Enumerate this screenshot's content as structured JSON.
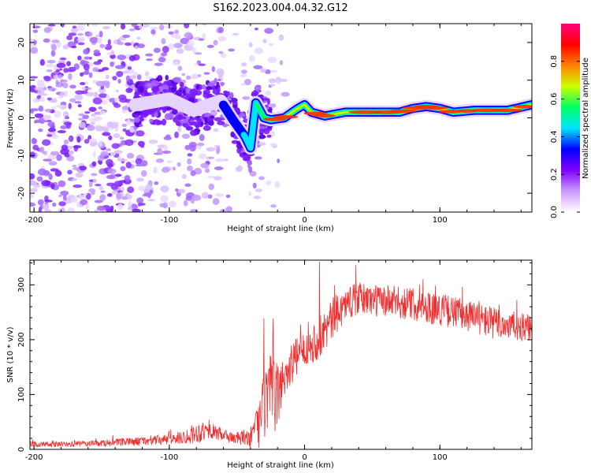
{
  "title": "S162.2023.004.04.32.G12",
  "chart_data": [
    {
      "type": "heatmap",
      "xlabel": "Height of straight line (km)",
      "ylabel": "Frequency (Hz)",
      "xlim": [
        -203,
        168
      ],
      "ylim": [
        -25,
        25
      ],
      "xticks": [
        -200,
        -100,
        0,
        100
      ],
      "yticks": [
        -20,
        -10,
        0,
        10,
        20
      ],
      "colorbar": {
        "label": "Normalized spectral amplitude",
        "range": [
          0,
          1
        ],
        "ticks": [
          0.0,
          0.2,
          0.4,
          0.6,
          0.8
        ],
        "colors": [
          "#ffffff",
          "#cc99ff",
          "#8000ff",
          "#0000ff",
          "#00e5ff",
          "#00ff66",
          "#ccff00",
          "#ff8000",
          "#ff0000",
          "#ff0080"
        ]
      },
      "ridge": {
        "x": [
          -124,
          -100,
          -82,
          -62,
          -52,
          -44,
          -40,
          -36,
          -30,
          -25,
          -15,
          -5,
          0,
          5,
          15,
          30,
          50,
          70,
          80,
          90,
          100,
          110,
          125,
          150,
          168
        ],
        "freq": [
          3.5,
          5,
          2,
          4.5,
          -1,
          -5,
          -8,
          4,
          0,
          -0.5,
          0,
          2.5,
          3.5,
          1.5,
          0.5,
          1.5,
          1.5,
          1.5,
          2.5,
          3,
          2.5,
          1.5,
          2,
          2,
          3.5
        ]
      }
    },
    {
      "type": "line",
      "xlabel": "Height of straight line (km)",
      "ylabel": "SNR (10 * v/v)",
      "xlim": [
        -203,
        168
      ],
      "ylim": [
        0,
        345
      ],
      "xticks": [
        -200,
        -100,
        0,
        100
      ],
      "yticks": [
        0,
        100,
        200,
        300
      ],
      "color": "#f03030",
      "envelope": {
        "x": [
          -203,
          -180,
          -150,
          -120,
          -100,
          -90,
          -80,
          -70,
          -60,
          -50,
          -40,
          -35,
          -30,
          -25,
          -20,
          -15,
          -10,
          0,
          10,
          20,
          30,
          40,
          60,
          80,
          100,
          120,
          140,
          168
        ],
        "mean": [
          9,
          9,
          11,
          15,
          18,
          22,
          30,
          35,
          25,
          20,
          22,
          40,
          80,
          100,
          95,
          135,
          155,
          185,
          200,
          235,
          265,
          275,
          270,
          265,
          255,
          245,
          230,
          220
        ],
        "noise": [
          6,
          5,
          6,
          8,
          10,
          12,
          20,
          15,
          12,
          12,
          18,
          40,
          70,
          75,
          60,
          40,
          40,
          30,
          40,
          40,
          30,
          30,
          30,
          30,
          30,
          30,
          30,
          25
        ]
      },
      "peak": {
        "x": 11,
        "y": 342
      }
    }
  ]
}
